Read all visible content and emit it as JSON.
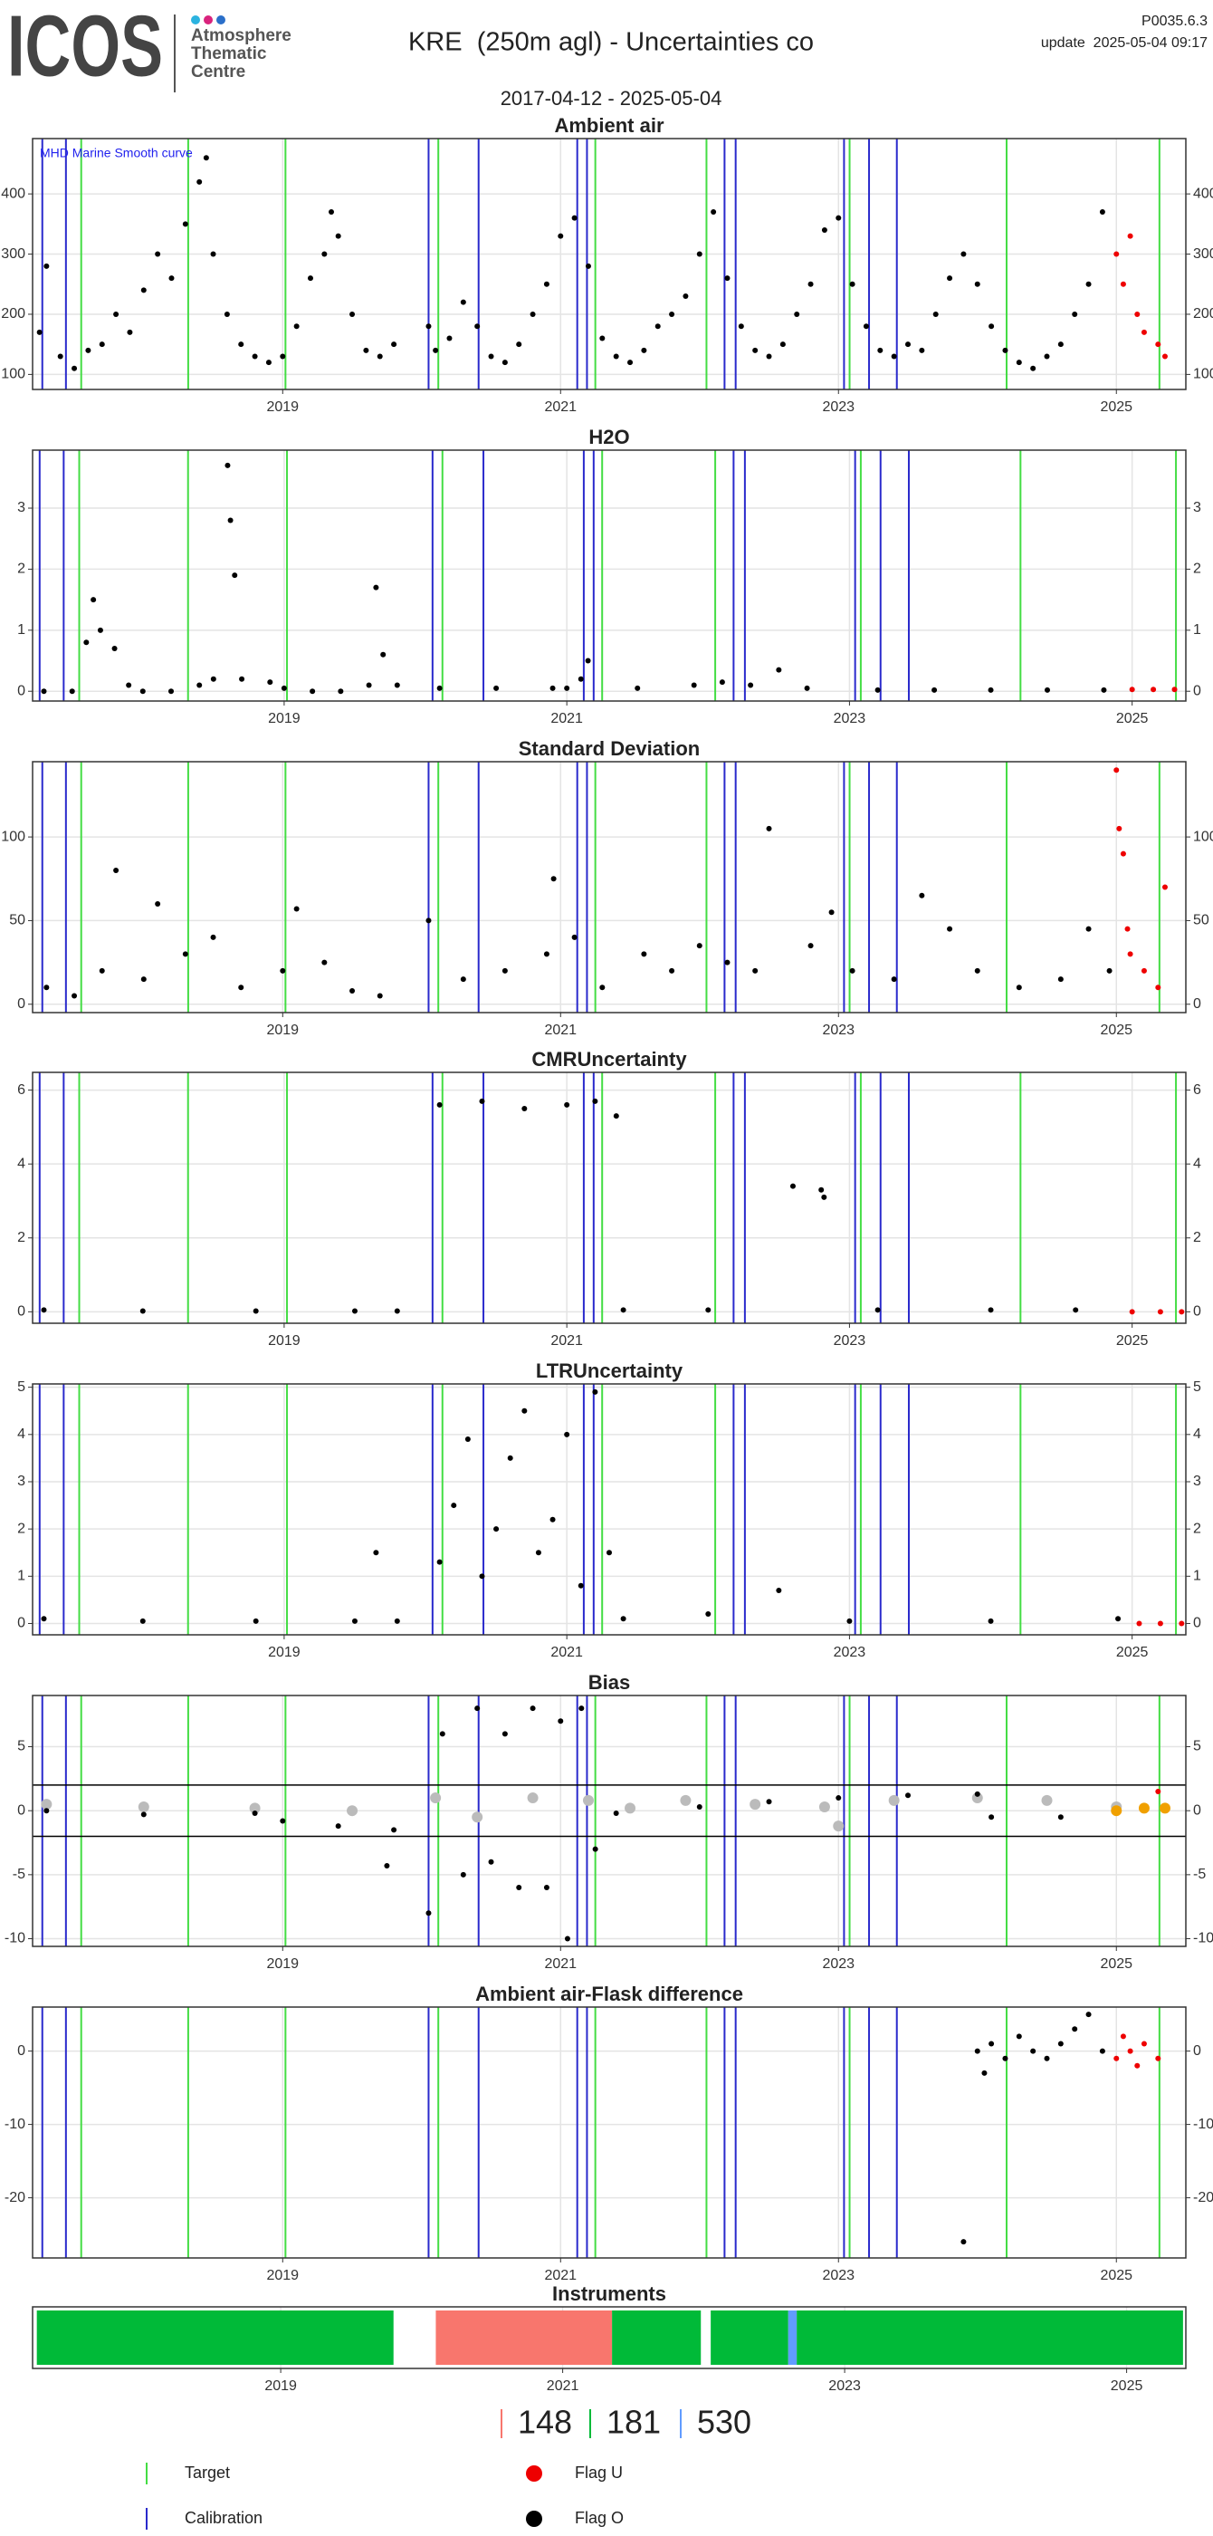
{
  "header": {
    "logo": "ICOS",
    "logo_sub": [
      "Atmosphere",
      "Thematic",
      "Centre"
    ],
    "title": "KRE  (250m agl) - Uncertainties co",
    "version": "P0035.6.3",
    "update": "update  2025-05-04 09:17",
    "period": "2017-04-12 - 2025-05-04"
  },
  "events": [
    {
      "name": "Target",
      "color": "#44dd44",
      "dates": [
        2017.55,
        2018.32,
        2019.02,
        2020.12,
        2021.25,
        2022.05,
        2023.08,
        2024.21,
        2025.31
      ]
    },
    {
      "name": "Calibration",
      "color": "#2a2acc",
      "dates": [
        2017.27,
        2017.44,
        2020.05,
        2020.41,
        2021.12,
        2021.19,
        2022.18,
        2022.26,
        2023.04,
        2023.22,
        2023.42
      ]
    }
  ],
  "chart_data": [
    {
      "type": "scatter",
      "title": "Ambient air",
      "annotation": "MHD Marine Smooth curve",
      "xlim": [
        2017.2,
        2025.5
      ],
      "xticks": [
        2019,
        2021,
        2023,
        2025
      ],
      "ylim": [
        75,
        492
      ],
      "yticks": [
        100,
        200,
        300,
        400
      ],
      "grid": true,
      "series": [
        {
          "name": "Flag O",
          "color": "#000000",
          "x": [
            2017.25,
            2017.3,
            2017.4,
            2017.5,
            2017.6,
            2017.7,
            2017.8,
            2017.9,
            2018.0,
            2018.1,
            2018.2,
            2018.3,
            2018.4,
            2018.45,
            2018.5,
            2018.6,
            2018.7,
            2018.8,
            2018.9,
            2019.0,
            2019.1,
            2019.2,
            2019.3,
            2019.35,
            2019.4,
            2019.5,
            2019.6,
            2019.7,
            2019.8,
            2020.05,
            2020.1,
            2020.2,
            2020.3,
            2020.4,
            2020.5,
            2020.6,
            2020.7,
            2020.8,
            2020.9,
            2021.0,
            2021.1,
            2021.2,
            2021.3,
            2021.4,
            2021.5,
            2021.6,
            2021.7,
            2021.8,
            2021.9,
            2022.0,
            2022.1,
            2022.2,
            2022.3,
            2022.4,
            2022.5,
            2022.6,
            2022.7,
            2022.8,
            2022.9,
            2023.0,
            2023.1,
            2023.2,
            2023.3,
            2023.4,
            2023.5,
            2023.6,
            2023.7,
            2023.8,
            2023.9,
            2024.0,
            2024.1,
            2024.2,
            2024.3,
            2024.4,
            2024.5,
            2024.6,
            2024.7,
            2024.8,
            2024.9
          ],
          "values": [
            170,
            280,
            130,
            110,
            140,
            150,
            200,
            170,
            240,
            300,
            260,
            350,
            420,
            460,
            300,
            200,
            150,
            130,
            120,
            130,
            180,
            260,
            300,
            370,
            330,
            200,
            140,
            130,
            150,
            180,
            140,
            160,
            220,
            180,
            130,
            120,
            150,
            200,
            250,
            330,
            360,
            280,
            160,
            130,
            120,
            140,
            180,
            200,
            230,
            300,
            370,
            260,
            180,
            140,
            130,
            150,
            200,
            250,
            340,
            360,
            250,
            180,
            140,
            130,
            150,
            140,
            200,
            260,
            300,
            250,
            180,
            140,
            120,
            110,
            130,
            150,
            200,
            250,
            370
          ]
        },
        {
          "name": "Flag U",
          "color": "#ee0000",
          "x": [
            2025.0,
            2025.05,
            2025.1,
            2025.15,
            2025.2,
            2025.3,
            2025.35
          ],
          "values": [
            300,
            250,
            330,
            200,
            170,
            150,
            130
          ]
        }
      ]
    },
    {
      "type": "scatter",
      "title": "H2O",
      "xlim": [
        2017.22,
        2025.38
      ],
      "xticks": [
        2019,
        2021,
        2023,
        2025
      ],
      "ylim": [
        -0.16,
        3.95
      ],
      "yticks": [
        0,
        1,
        2,
        3
      ],
      "grid": true,
      "series": [
        {
          "name": "Flag O",
          "color": "#000000",
          "x": [
            2017.3,
            2017.5,
            2017.6,
            2017.65,
            2017.7,
            2017.8,
            2017.9,
            2018.0,
            2018.2,
            2018.4,
            2018.5,
            2018.6,
            2018.62,
            2018.65,
            2018.7,
            2018.9,
            2019.0,
            2019.2,
            2019.4,
            2019.6,
            2019.65,
            2019.7,
            2019.8,
            2020.1,
            2020.5,
            2020.9,
            2021.0,
            2021.1,
            2021.15,
            2021.5,
            2021.9,
            2022.1,
            2022.3,
            2022.5,
            2022.7,
            2023.2,
            2023.6,
            2024.0,
            2024.4,
            2024.8
          ],
          "values": [
            0,
            0,
            0.8,
            1.5,
            1.0,
            0.7,
            0.1,
            0,
            0,
            0.1,
            0.2,
            3.7,
            2.8,
            1.9,
            0.2,
            0.15,
            0.05,
            0,
            0,
            0.1,
            1.7,
            0.6,
            0.1,
            0.05,
            0.05,
            0.05,
            0.05,
            0.2,
            0.5,
            0.05,
            0.1,
            0.15,
            0.1,
            0.35,
            0.05,
            0.02,
            0.02,
            0.02,
            0.02,
            0.02
          ]
        },
        {
          "name": "Flag U",
          "color": "#ee0000",
          "x": [
            2025.0,
            2025.15,
            2025.3
          ],
          "values": [
            0.03,
            0.03,
            0.03
          ]
        }
      ]
    },
    {
      "type": "scatter",
      "title": "Standard Deviation",
      "xlim": [
        2017.2,
        2025.5
      ],
      "xticks": [
        2019,
        2021,
        2023,
        2025
      ],
      "ylim": [
        -5,
        145
      ],
      "yticks": [
        0,
        50,
        100
      ],
      "grid": true,
      "series": [
        {
          "name": "Flag O",
          "color": "#000000",
          "x": [
            2017.3,
            2017.5,
            2017.7,
            2017.8,
            2018.0,
            2018.1,
            2018.3,
            2018.5,
            2018.7,
            2019.0,
            2019.1,
            2019.3,
            2019.5,
            2019.7,
            2020.05,
            2020.3,
            2020.6,
            2020.9,
            2020.95,
            2021.1,
            2021.3,
            2021.6,
            2021.8,
            2022.0,
            2022.2,
            2022.4,
            2022.5,
            2022.8,
            2022.95,
            2023.1,
            2023.4,
            2023.6,
            2023.8,
            2024.0,
            2024.3,
            2024.6,
            2024.8,
            2024.95
          ],
          "values": [
            10,
            5,
            20,
            80,
            15,
            60,
            30,
            40,
            10,
            20,
            57,
            25,
            8,
            5,
            50,
            15,
            20,
            30,
            75,
            40,
            10,
            30,
            20,
            35,
            25,
            20,
            105,
            35,
            55,
            20,
            15,
            65,
            45,
            20,
            10,
            15,
            45,
            20
          ]
        },
        {
          "name": "Flag U",
          "color": "#ee0000",
          "x": [
            2025.0,
            2025.02,
            2025.05,
            2025.08,
            2025.1,
            2025.2,
            2025.3,
            2025.35
          ],
          "values": [
            140,
            105,
            90,
            45,
            30,
            20,
            10,
            70
          ]
        }
      ]
    },
    {
      "type": "scatter",
      "title": "CMRUncertainty",
      "xlim": [
        2017.22,
        2025.38
      ],
      "xticks": [
        2019,
        2021,
        2023,
        2025
      ],
      "ylim": [
        -0.31,
        6.48
      ],
      "yticks": [
        0,
        2,
        4,
        6
      ],
      "grid": true,
      "series": [
        {
          "name": "Flag O",
          "color": "#000000",
          "x": [
            2017.3,
            2018.0,
            2018.8,
            2019.5,
            2019.8,
            2020.1,
            2020.4,
            2020.7,
            2021.0,
            2021.2,
            2021.35,
            2021.4,
            2022.0,
            2022.6,
            2022.8,
            2022.82,
            2023.2,
            2024.0,
            2024.6
          ],
          "values": [
            0.05,
            0.02,
            0.02,
            0.02,
            0.02,
            5.6,
            5.7,
            5.5,
            5.6,
            5.7,
            5.3,
            0.05,
            0.05,
            3.4,
            3.3,
            3.1,
            0.05,
            0.05,
            0.05
          ]
        },
        {
          "name": "Flag U",
          "color": "#ee0000",
          "x": [
            2025.0,
            2025.2,
            2025.35
          ],
          "values": [
            0,
            0,
            0
          ]
        }
      ]
    },
    {
      "type": "scatter",
      "title": "LTRUncertainty",
      "xlim": [
        2017.22,
        2025.38
      ],
      "xticks": [
        2019,
        2021,
        2023,
        2025
      ],
      "ylim": [
        -0.24,
        5.07
      ],
      "yticks": [
        0,
        1,
        2,
        3,
        4,
        5
      ],
      "grid": true,
      "series": [
        {
          "name": "Flag O",
          "color": "#000000",
          "x": [
            2017.3,
            2018.0,
            2018.8,
            2019.5,
            2019.65,
            2019.8,
            2020.1,
            2020.2,
            2020.3,
            2020.4,
            2020.5,
            2020.6,
            2020.7,
            2020.8,
            2020.9,
            2021.0,
            2021.1,
            2021.2,
            2021.3,
            2021.4,
            2022.0,
            2022.5,
            2023.0,
            2024.0,
            2024.9
          ],
          "values": [
            0.1,
            0.05,
            0.05,
            0.05,
            1.5,
            0.05,
            1.3,
            2.5,
            3.9,
            1.0,
            2.0,
            3.5,
            4.5,
            1.5,
            2.2,
            4.0,
            0.8,
            4.9,
            1.5,
            0.1,
            0.2,
            0.7,
            0.05,
            0.05,
            0.1
          ]
        },
        {
          "name": "Flag U",
          "color": "#ee0000",
          "x": [
            2025.05,
            2025.2,
            2025.35
          ],
          "values": [
            0,
            0,
            0
          ]
        }
      ]
    },
    {
      "type": "scatter",
      "title": "Bias",
      "xlim": [
        2017.2,
        2025.5
      ],
      "xticks": [
        2019,
        2021,
        2023,
        2025
      ],
      "ylim": [
        -10.6,
        9
      ],
      "yticks": [
        -10,
        -5,
        0,
        5
      ],
      "grid": true,
      "hlines": [
        2,
        -2
      ],
      "series": [
        {
          "color": "#bbbbbb",
          "x": [
            2017.3,
            2018.0,
            2018.8,
            2019.5,
            2020.1,
            2020.4,
            2020.8,
            2021.2,
            2021.5,
            2021.9,
            2022.4,
            2022.9,
            2023.0,
            2023.4,
            2024.0,
            2024.5,
            2025.0
          ],
          "values": [
            0.5,
            0.3,
            0.2,
            0,
            1,
            -0.5,
            1,
            0.8,
            0.2,
            0.8,
            0.5,
            0.3,
            -1.2,
            0.8,
            1.0,
            0.8,
            0.3
          ]
        },
        {
          "name": "Flag O",
          "color": "#000000",
          "x": [
            2017.3,
            2018.0,
            2018.8,
            2019.0,
            2019.4,
            2019.75,
            2019.8,
            2020.05,
            2020.15,
            2020.3,
            2020.4,
            2020.5,
            2020.6,
            2020.7,
            2020.8,
            2020.9,
            2021.0,
            2021.05,
            2021.15,
            2021.25,
            2021.4,
            2022.0,
            2022.5,
            2023.0,
            2023.5,
            2024.0,
            2024.1,
            2024.6
          ],
          "values": [
            0,
            -0.3,
            -0.2,
            -0.8,
            -1.2,
            -4.3,
            -1.5,
            -8,
            6,
            -5,
            8,
            -4,
            6,
            -6,
            8,
            -6,
            7,
            -10,
            8,
            -3,
            -0.2,
            0.3,
            0.7,
            1.0,
            1.2,
            1.3,
            -0.5,
            -0.5
          ]
        },
        {
          "color": "#f0a000",
          "x": [
            2025.0,
            2025.2,
            2025.35
          ],
          "values": [
            0,
            0.2,
            0.2
          ]
        },
        {
          "name": "Flag U",
          "color": "#ee0000",
          "x": [
            2025.3
          ],
          "values": [
            1.5
          ]
        }
      ]
    },
    {
      "type": "scatter",
      "title": "Ambient air-Flask difference",
      "xlim": [
        2017.2,
        2025.5
      ],
      "xticks": [
        2019,
        2021,
        2023,
        2025
      ],
      "ylim": [
        -28.2,
        6
      ],
      "yticks": [
        -20,
        -10,
        0
      ],
      "grid": true,
      "series": [
        {
          "name": "Flag O",
          "color": "#000000",
          "x": [
            2023.9,
            2024.0,
            2024.05,
            2024.1,
            2024.2,
            2024.3,
            2024.4,
            2024.5,
            2024.6,
            2024.7,
            2024.8,
            2024.9
          ],
          "values": [
            -26,
            0,
            -3,
            1,
            -1,
            2,
            0,
            -1,
            1,
            3,
            5,
            0
          ]
        },
        {
          "name": "Flag U",
          "color": "#ee0000",
          "x": [
            2025.0,
            2025.05,
            2025.1,
            2025.15,
            2025.2,
            2025.3
          ],
          "values": [
            -1,
            2,
            0,
            -2,
            1,
            -1
          ]
        }
      ]
    },
    {
      "type": "timeline",
      "title": "Instruments",
      "xlim": [
        2017.24,
        2025.42
      ],
      "xticks": [
        2019,
        2021,
        2023,
        2025
      ],
      "instruments": [
        {
          "name": "148",
          "color": "#f8766d"
        },
        {
          "name": "181",
          "color": "#00ba38"
        },
        {
          "name": "530",
          "color": "#619cff"
        }
      ],
      "segments": [
        {
          "instrument": "181",
          "start": 2017.27,
          "end": 2019.8
        },
        {
          "instrument": "148",
          "start": 2020.1,
          "end": 2021.35
        },
        {
          "instrument": "181",
          "start": 2021.35,
          "end": 2021.98
        },
        {
          "instrument": "181",
          "start": 2022.05,
          "end": 2022.6
        },
        {
          "instrument": "530",
          "start": 2022.6,
          "end": 2022.66
        },
        {
          "instrument": "181",
          "start": 2022.66,
          "end": 2025.4
        }
      ]
    }
  ]
}
